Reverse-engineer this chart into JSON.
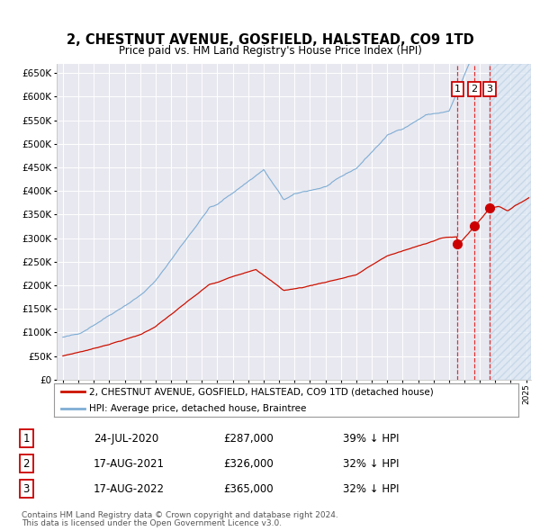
{
  "title": "2, CHESTNUT AVENUE, GOSFIELD, HALSTEAD, CO9 1TD",
  "subtitle": "Price paid vs. HM Land Registry's House Price Index (HPI)",
  "title_fontsize": 10.5,
  "subtitle_fontsize": 8.5,
  "background_color": "#ffffff",
  "plot_bg_color": "#e8e8f0",
  "grid_color": "#ffffff",
  "hpi_color": "#7eadd4",
  "price_color": "#cc1100",
  "sale_dot_color": "#cc0000",
  "vline_color": "#dd3333",
  "shade_color": "#dce8f5",
  "ylim": [
    0,
    670000
  ],
  "ytick_step": 50000,
  "sale_dates_num": [
    2020.56,
    2021.63,
    2022.63
  ],
  "sale_prices": [
    287000,
    326000,
    365000
  ],
  "sale_labels": [
    "1",
    "2",
    "3"
  ],
  "xmin": 1995.0,
  "xmax": 2025.3,
  "legend_entries": [
    "2, CHESTNUT AVENUE, GOSFIELD, HALSTEAD, CO9 1TD (detached house)",
    "HPI: Average price, detached house, Braintree"
  ],
  "table_rows": [
    [
      "1",
      "24-JUL-2020",
      "£287,000",
      "39% ↓ HPI"
    ],
    [
      "2",
      "17-AUG-2021",
      "£326,000",
      "32% ↓ HPI"
    ],
    [
      "3",
      "17-AUG-2022",
      "£365,000",
      "32% ↓ HPI"
    ]
  ],
  "footer_line1": "Contains HM Land Registry data © Crown copyright and database right 2024.",
  "footer_line2": "This data is licensed under the Open Government Licence v3.0."
}
